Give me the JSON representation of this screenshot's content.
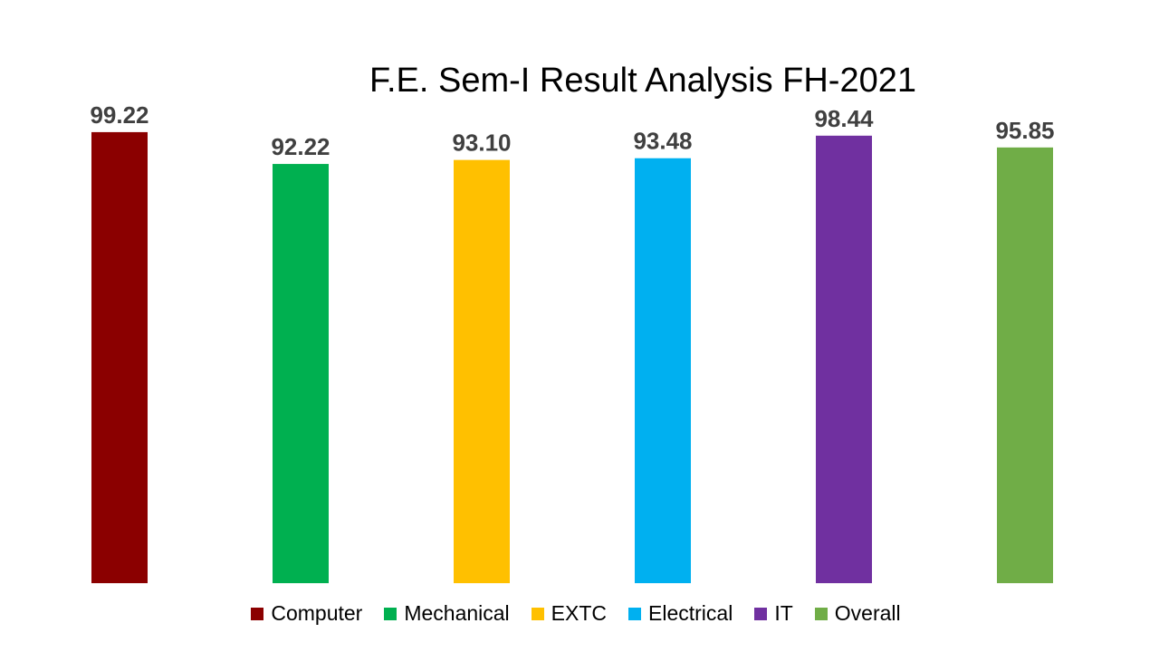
{
  "chart_data": {
    "type": "bar",
    "title": "F.E. Sem-I Result Analysis FH-2021",
    "categories": [
      "Computer",
      "Mechanical",
      "EXTC",
      "Electrical",
      "IT",
      "Overall"
    ],
    "values": [
      99.22,
      92.22,
      93.1,
      93.48,
      98.44,
      95.85
    ],
    "value_labels": [
      "99.22",
      "92.22",
      "93.10",
      "93.48",
      "98.44",
      "95.85"
    ],
    "colors": [
      "#8B0000",
      "#00B050",
      "#FFC000",
      "#00B0F0",
      "#7030A0",
      "#70AD47"
    ],
    "ylim": [
      0,
      100
    ],
    "xlabel": "",
    "ylabel": "",
    "grid": false,
    "legend": "bottom"
  }
}
